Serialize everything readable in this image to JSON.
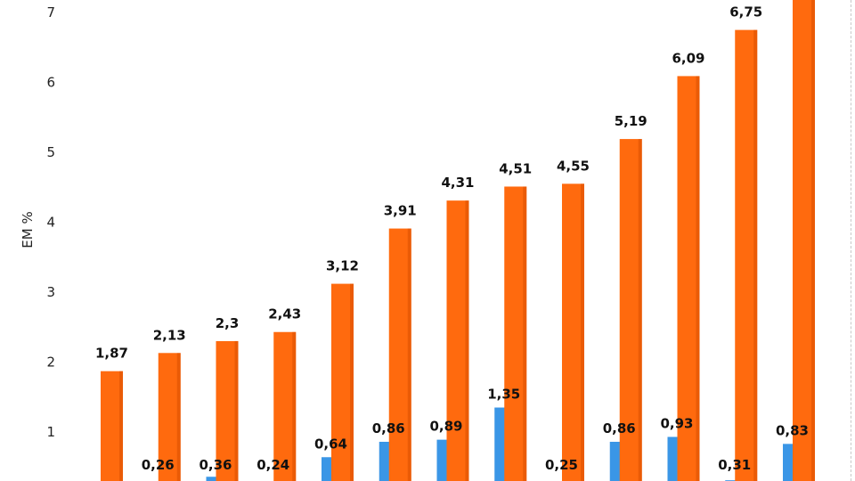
{
  "chart_data": {
    "type": "bar",
    "ylabel": "EM %",
    "ylim": [
      0,
      7.2
    ],
    "yticks": [
      1,
      2,
      3,
      4,
      5,
      6,
      7
    ],
    "grid": false,
    "legend": "none",
    "colors": {
      "series_a": "#3a96e6",
      "series_b": "#ff6a0e"
    },
    "series": [
      {
        "values": [
          null,
          0.26,
          0.36,
          0.24,
          0.64,
          0.86,
          0.89,
          1.35,
          0.25,
          0.86,
          0.93,
          0.31,
          0.83
        ],
        "labels": [
          "",
          "0,26",
          "0,36",
          "0,24",
          "0,64",
          "0,86",
          "0,89",
          "1,35",
          "0,25",
          "0,86",
          "0,93",
          "0,31",
          "0,83"
        ]
      },
      {
        "values": [
          1.87,
          2.13,
          2.3,
          2.43,
          3.12,
          3.91,
          4.31,
          4.51,
          4.55,
          5.19,
          6.09,
          6.75,
          7.6
        ],
        "labels": [
          "1,87",
          "2,13",
          "2,3",
          "2,43",
          "3,12",
          "3,91",
          "4,31",
          "4,51",
          "4,55",
          "5,19",
          "6,09",
          "6,75",
          ""
        ]
      }
    ]
  }
}
